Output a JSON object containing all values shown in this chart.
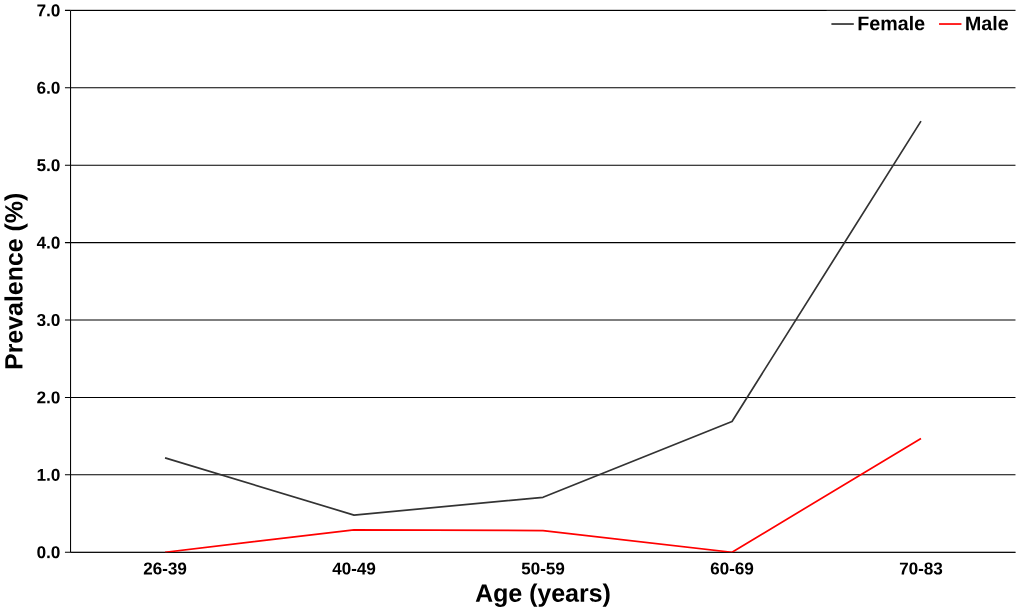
{
  "chart_data": {
    "type": "line",
    "xlabel": "Age (years)",
    "ylabel": "Prevalence (%)",
    "categories": [
      "26-39",
      "40-49",
      "50-59",
      "60-69",
      "70-83"
    ],
    "series": [
      {
        "name": "Female",
        "color": "#333333",
        "values": [
          1.22,
          0.48,
          0.71,
          1.69,
          5.57
        ]
      },
      {
        "name": "Male",
        "color": "#ff0000",
        "values": [
          0,
          0.29,
          0.28,
          0,
          1.47
        ]
      }
    ],
    "ylim": [
      0,
      7
    ],
    "yticks": [
      {
        "value": 0,
        "label": "0.0"
      },
      {
        "value": 1,
        "label": "1.0"
      },
      {
        "value": 2,
        "label": "2.0"
      },
      {
        "value": 3,
        "label": "3.0"
      },
      {
        "value": 4,
        "label": "4.0"
      },
      {
        "value": 5,
        "label": "5.0"
      },
      {
        "value": 6,
        "label": "6.0"
      },
      {
        "value": 7,
        "label": "7.0"
      }
    ],
    "grid": "y",
    "legend": "top right",
    "marker": "none",
    "line_style": "solid"
  }
}
